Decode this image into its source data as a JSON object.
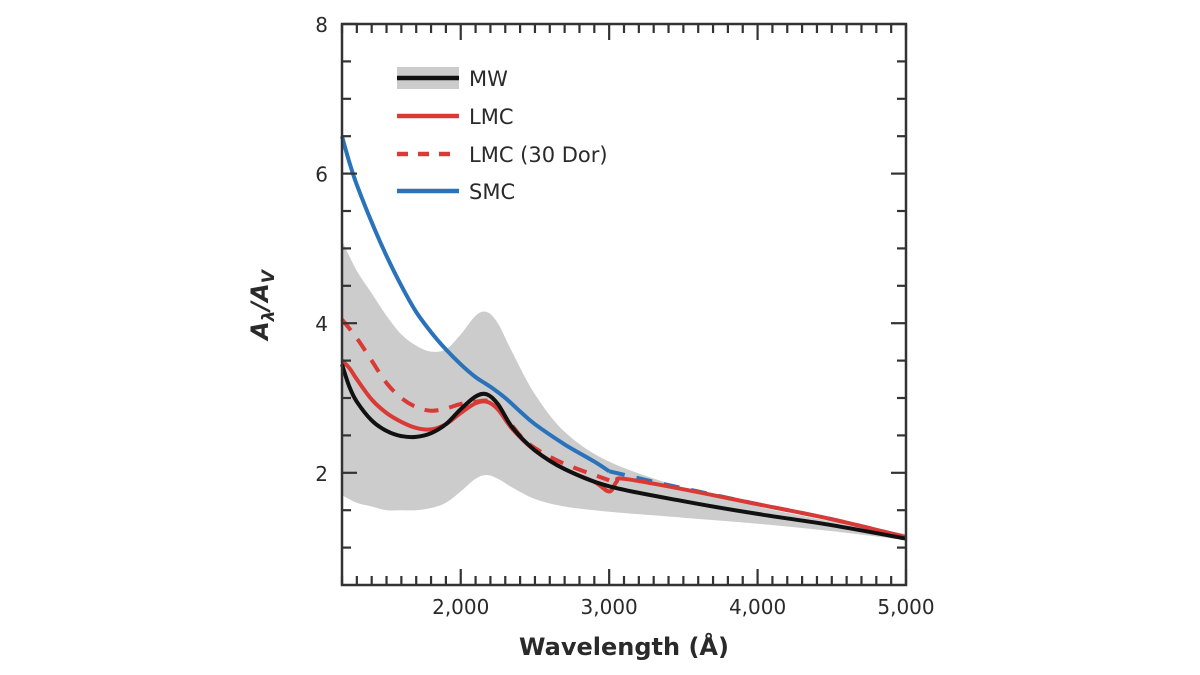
{
  "chart_data": {
    "type": "line",
    "title": "",
    "xlabel": "Wavelength (Å)",
    "ylabel_main": "A",
    "ylabel_sub1": "λ",
    "ylabel_slash": "/A",
    "ylabel_sub2": "V",
    "xlim": [
      1200,
      5000
    ],
    "ylim": [
      0.5,
      8
    ],
    "x_ticks": [
      2000,
      3000,
      4000,
      5000
    ],
    "x_tick_labels": [
      "2,000",
      "3,000",
      "4,000",
      "5,000"
    ],
    "y_ticks": [
      2,
      4,
      6,
      8
    ],
    "y_tick_labels": [
      "2",
      "4",
      "6",
      "8"
    ],
    "x_minor_step": 100,
    "y_minor_step": 0.5,
    "grid": false,
    "legend_position": "top-left",
    "band": {
      "name": "MW range",
      "color": "#cccccc",
      "upper": {
        "x": [
          1200,
          1300,
          1400,
          1500,
          1600,
          1700,
          1800,
          1900,
          2000,
          2100,
          2175,
          2250,
          2350,
          2500,
          2700,
          3000,
          3500,
          4000,
          4500,
          5000
        ],
        "y": [
          5.1,
          4.7,
          4.4,
          4.1,
          3.85,
          3.7,
          3.62,
          3.65,
          3.85,
          4.1,
          4.15,
          4.0,
          3.6,
          3.05,
          2.55,
          2.15,
          1.8,
          1.55,
          1.35,
          1.18
        ]
      },
      "lower": {
        "x": [
          1200,
          1300,
          1400,
          1500,
          1600,
          1700,
          1800,
          1900,
          2000,
          2100,
          2175,
          2250,
          2350,
          2500,
          2700,
          3000,
          3500,
          4000,
          4500,
          5000
        ],
        "y": [
          1.7,
          1.6,
          1.55,
          1.5,
          1.5,
          1.5,
          1.53,
          1.6,
          1.75,
          1.92,
          1.97,
          1.92,
          1.8,
          1.65,
          1.55,
          1.48,
          1.4,
          1.32,
          1.22,
          1.1
        ]
      }
    },
    "series": [
      {
        "name": "MW",
        "color": "#111111",
        "style": "solid",
        "x": [
          1200,
          1250,
          1300,
          1400,
          1500,
          1600,
          1700,
          1800,
          1900,
          2000,
          2100,
          2175,
          2250,
          2350,
          2500,
          2700,
          3000,
          3500,
          4000,
          4500,
          5000
        ],
        "y": [
          3.45,
          3.15,
          2.95,
          2.7,
          2.56,
          2.49,
          2.48,
          2.53,
          2.65,
          2.85,
          3.02,
          3.05,
          2.92,
          2.6,
          2.3,
          2.05,
          1.82,
          1.62,
          1.45,
          1.3,
          1.12
        ]
      },
      {
        "name": "LMC",
        "color": "#d93a35",
        "style": "solid",
        "x": [
          1200,
          1250,
          1300,
          1400,
          1500,
          1600,
          1700,
          1800,
          1900,
          2000,
          2100,
          2175,
          2250,
          2350,
          2500,
          2700,
          2900,
          3000,
          3050,
          3100,
          3500,
          4000,
          4500,
          5000
        ],
        "y": [
          3.5,
          3.4,
          3.25,
          2.98,
          2.8,
          2.68,
          2.6,
          2.58,
          2.65,
          2.8,
          2.93,
          2.95,
          2.85,
          2.58,
          2.3,
          2.05,
          1.88,
          1.75,
          1.88,
          1.92,
          1.78,
          1.58,
          1.38,
          1.14
        ]
      },
      {
        "name": "LMC (30 Dor)",
        "color": "#d93a35",
        "style": "dashed",
        "x": [
          1200,
          1300,
          1400,
          1500,
          1600,
          1700,
          1800,
          1900,
          2000,
          2100,
          2200,
          2300,
          2400,
          2500,
          2700,
          3000
        ],
        "y": [
          4.05,
          3.8,
          3.5,
          3.2,
          3.0,
          2.88,
          2.83,
          2.86,
          2.92,
          2.95,
          2.95,
          2.75,
          2.5,
          2.33,
          2.12,
          1.9
        ]
      },
      {
        "name": "SMC",
        "color": "#2a73bb",
        "style": "solid",
        "x": [
          1200,
          1250,
          1300,
          1400,
          1500,
          1600,
          1700,
          1800,
          1900,
          2000,
          2100,
          2200,
          2300,
          2400,
          2500,
          2700,
          2900,
          3000
        ],
        "y": [
          6.5,
          6.15,
          5.85,
          5.35,
          4.9,
          4.5,
          4.15,
          3.88,
          3.65,
          3.45,
          3.28,
          3.15,
          3.0,
          2.82,
          2.65,
          2.38,
          2.15,
          2.02
        ]
      },
      {
        "name": "SMC (extrapolated)",
        "color": "#2a73bb",
        "style": "dashed",
        "legend": false,
        "x": [
          3000,
          3300,
          3600,
          4000,
          4500,
          5000
        ],
        "y": [
          2.02,
          1.88,
          1.75,
          1.58,
          1.38,
          1.14
        ]
      }
    ],
    "legend": [
      {
        "label": "MW",
        "color": "#111111",
        "style": "solid",
        "band": true
      },
      {
        "label": "LMC",
        "color": "#d93a35",
        "style": "solid"
      },
      {
        "label": "LMC (30 Dor)",
        "color": "#d93a35",
        "style": "dashed"
      },
      {
        "label": "SMC",
        "color": "#2a73bb",
        "style": "solid"
      }
    ]
  }
}
